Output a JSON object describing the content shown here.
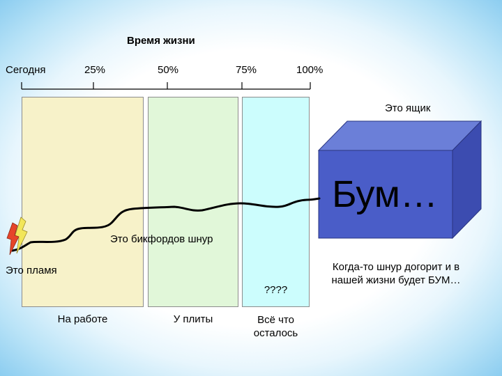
{
  "title": "Время жизни",
  "scale": {
    "start_label": "Сегодня",
    "ticks": [
      "25%",
      "50%",
      "75%",
      "100%"
    ]
  },
  "zones": {
    "work": "На работе",
    "stove": "У плиты",
    "rest": "Всё что осталось",
    "unknown": "????"
  },
  "fuse_label": "Это бикфордов шнур",
  "flame_label": "Это пламя",
  "box": {
    "label": "Это ящик",
    "front_text": "Бум…",
    "note": "Когда-то шнур догорит и в нашей жизни будет БУМ…"
  },
  "colors": {
    "zone_work": "#f7f2c9",
    "zone_stove": "#e1f7d9",
    "zone_rest": "#ccfdfd",
    "box_front": "#4a5dc8",
    "box_top": "#6b7fd8",
    "box_side": "#3c4cb0",
    "flame_red": "#e6452a",
    "flame_yellow": "#f2e65a"
  }
}
